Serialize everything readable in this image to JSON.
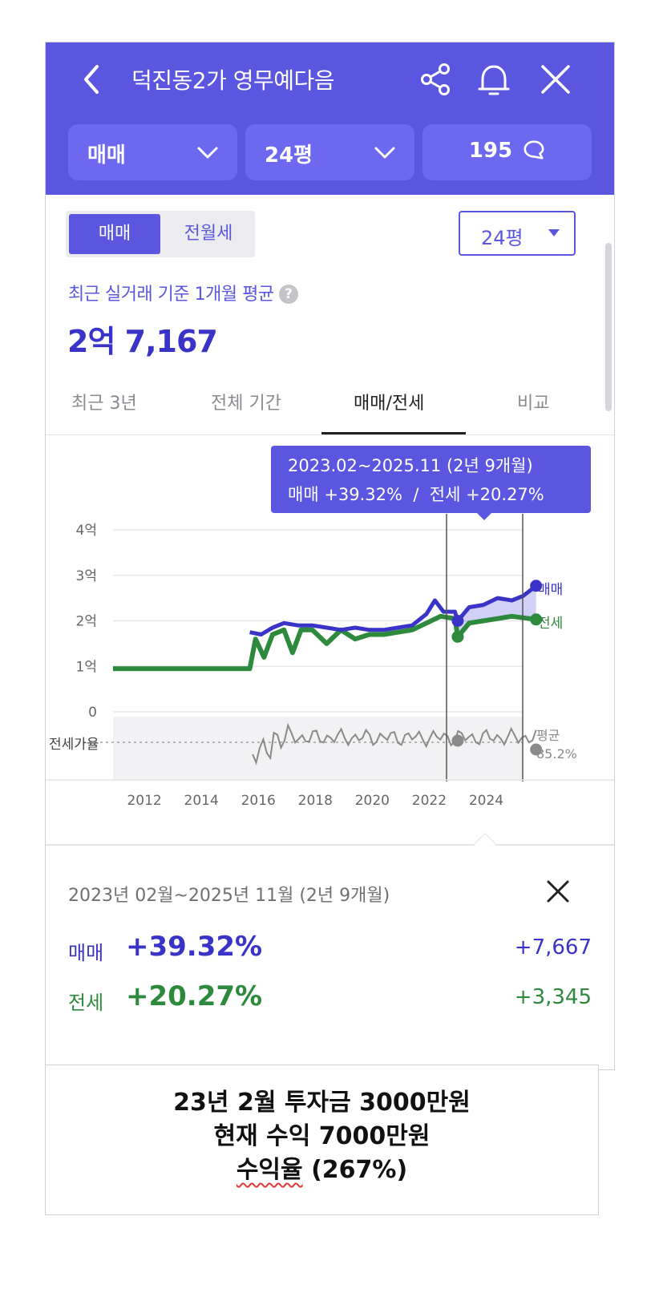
{
  "header": {
    "title": "덕진동2가 영무예다음",
    "selectors": [
      {
        "label": "매매"
      },
      {
        "label": "24평"
      },
      {
        "label": "195",
        "icon": "chat-bubble-icon"
      }
    ]
  },
  "toggle": {
    "active": "매매",
    "inactive": "전월세"
  },
  "size_dropdown": {
    "label": "24평"
  },
  "average": {
    "label": "최근 실거래 기준 1개월 평균",
    "value": "2억 7,167"
  },
  "tabs": [
    {
      "label": "최근 3년",
      "active": false
    },
    {
      "label": "전체 기간",
      "active": false
    },
    {
      "label": "매매/전세",
      "active": true
    },
    {
      "label": "비교",
      "active": false
    }
  ],
  "tooltip": {
    "line1": "2023.02~2025.11 (2년 9개월)",
    "line2": "매매 +39.32%  /  전세 +20.27%"
  },
  "colors": {
    "brand": "#5b56e0",
    "sale": "#3a33c8",
    "jeonse": "#2d8a3c",
    "ratio": "#8a8a8a"
  },
  "chart_data": {
    "type": "line",
    "y_tick_labels": [
      "4억",
      "3억",
      "2억",
      "1억",
      "0"
    ],
    "x_tick_labels": [
      "2012",
      "2014",
      "2016",
      "2018",
      "2020",
      "2022",
      "2024"
    ],
    "ylim": [
      0,
      4
    ],
    "xlim": [
      2011.0,
      2026.0
    ],
    "series": [
      {
        "name": "매매",
        "x": [
          2015.8,
          2016.2,
          2016.6,
          2017.0,
          2017.5,
          2018.0,
          2018.5,
          2019.0,
          2019.5,
          2020.0,
          2020.5,
          2021.0,
          2021.5,
          2022.0,
          2022.3,
          2022.6,
          2023.0,
          2023.1,
          2023.5,
          2024.0,
          2024.5,
          2025.0,
          2025.4,
          2025.85
        ],
        "values": [
          1.75,
          1.7,
          1.85,
          1.95,
          1.9,
          1.9,
          1.85,
          1.8,
          1.85,
          1.8,
          1.8,
          1.85,
          1.9,
          2.15,
          2.45,
          2.2,
          2.2,
          2.0,
          2.3,
          2.35,
          2.5,
          2.45,
          2.55,
          2.77
        ]
      },
      {
        "name": "전세",
        "x": [
          2011.0,
          2012.0,
          2013.0,
          2014.0,
          2015.0,
          2015.8,
          2016.0,
          2016.3,
          2016.6,
          2017.0,
          2017.3,
          2017.6,
          2018.0,
          2018.5,
          2019.0,
          2019.5,
          2020.0,
          2020.5,
          2021.0,
          2021.5,
          2022.0,
          2022.5,
          2023.0,
          2023.1,
          2023.5,
          2024.0,
          2024.5,
          2025.0,
          2025.85
        ],
        "values": [
          0.95,
          0.95,
          0.95,
          0.95,
          0.95,
          0.95,
          1.6,
          1.2,
          1.7,
          1.8,
          1.3,
          1.8,
          1.8,
          1.5,
          1.8,
          1.6,
          1.7,
          1.7,
          1.75,
          1.8,
          1.95,
          2.1,
          2.05,
          1.65,
          1.95,
          2.0,
          2.05,
          2.1,
          2.03
        ]
      }
    ],
    "ratio_label": "전세가율",
    "ratio_avg_label": "평균",
    "ratio_avg_value": "85.2%",
    "selection_range": [
      "2023.02",
      "2025.11"
    ]
  },
  "summary": {
    "period": "2023년 02월~2025년 11월 (2년 9개월)",
    "rows": [
      {
        "key": "매매",
        "percent": "+39.32%",
        "delta": "+7,667"
      },
      {
        "key": "전세",
        "percent": "+20.27%",
        "delta": "+3,345"
      }
    ]
  },
  "note": {
    "line1": "23년 2월 투자금 3000만원",
    "line2": "현재 수익 7000만원",
    "line3_word": "수익율",
    "line3_rest": " (267%)"
  }
}
